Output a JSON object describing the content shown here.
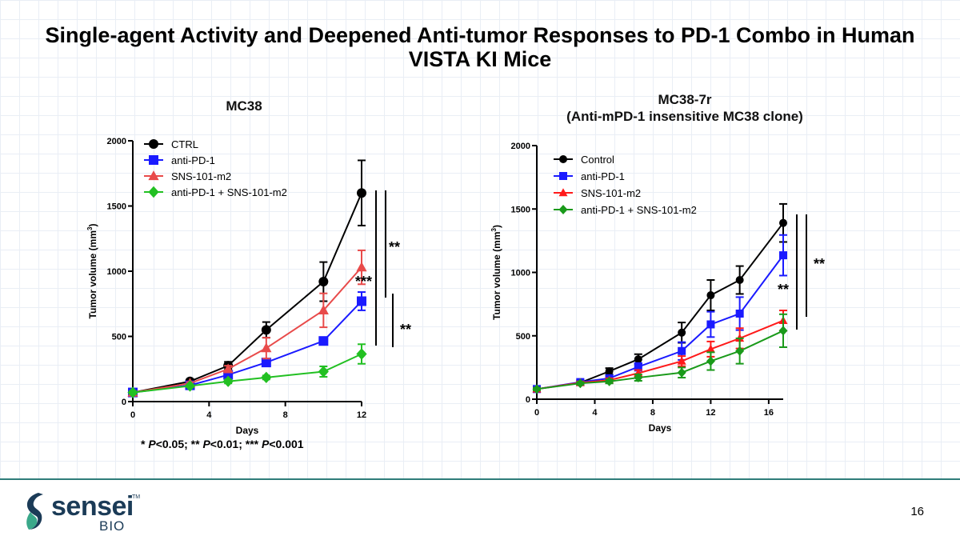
{
  "title": "Single-agent Activity and Deepened Anti-tumor Responses to PD-1 Combo in Human VISTA KI Mice",
  "footnote": "* P<0.05; ** P<0.01; *** P<0.001",
  "page_number": "16",
  "logo": {
    "word": "sensei",
    "sub": "BIO",
    "tm": "TM"
  },
  "chart_data": [
    {
      "type": "line",
      "title": "MC38",
      "xlabel": "Days",
      "ylabel": "Tumor volume (mm3)",
      "xlim": [
        0,
        12
      ],
      "ylim": [
        0,
        2000
      ],
      "xticks": [
        0,
        4,
        8,
        12
      ],
      "yticks": [
        0,
        500,
        1000,
        1500,
        2000
      ],
      "legend_position": "top-left",
      "series": [
        {
          "name": "CTRL",
          "color": "#000000",
          "marker": "circle",
          "x": [
            0,
            3,
            5,
            7,
            10,
            12
          ],
          "y": [
            70,
            155,
            275,
            550,
            920,
            1600
          ],
          "err": [
            10,
            15,
            30,
            60,
            150,
            250
          ]
        },
        {
          "name": "anti-PD-1",
          "color": "#1a1aff",
          "marker": "square",
          "x": [
            0,
            3,
            5,
            7,
            10,
            12
          ],
          "y": [
            70,
            125,
            205,
            300,
            465,
            770
          ],
          "err": [
            10,
            10,
            15,
            20,
            25,
            70
          ]
        },
        {
          "name": "SNS-101-m2",
          "color": "#e84a4a",
          "marker": "triangle",
          "x": [
            0,
            3,
            5,
            7,
            10,
            12
          ],
          "y": [
            70,
            140,
            250,
            410,
            700,
            1030
          ],
          "err": [
            10,
            10,
            25,
            80,
            130,
            130
          ]
        },
        {
          "name": "anti-PD-1 + SNS-101-m2",
          "color": "#22c022",
          "marker": "diamond",
          "x": [
            0,
            3,
            5,
            7,
            10,
            12
          ],
          "y": [
            70,
            120,
            155,
            185,
            230,
            365
          ],
          "err": [
            10,
            10,
            15,
            15,
            40,
            75
          ]
        }
      ],
      "annotations": [
        "**",
        "***",
        "**"
      ]
    },
    {
      "type": "line",
      "title": "MC38-7r",
      "subtitle": "(Anti-mPD-1 insensitive MC38 clone)",
      "xlabel": "Days",
      "ylabel": "Tumor volume (mm3)",
      "xlim": [
        0,
        17
      ],
      "ylim": [
        0,
        2000
      ],
      "xticks": [
        0,
        4,
        8,
        12,
        16
      ],
      "yticks": [
        0,
        500,
        1000,
        1500,
        2000
      ],
      "legend_position": "top-left",
      "series": [
        {
          "name": "Control",
          "color": "#000000",
          "marker": "circle",
          "x": [
            0,
            3,
            5,
            7,
            10,
            12,
            14,
            17
          ],
          "y": [
            80,
            130,
            220,
            315,
            525,
            820,
            940,
            1390
          ],
          "err": [
            10,
            15,
            25,
            40,
            80,
            120,
            110,
            150
          ]
        },
        {
          "name": "anti-PD-1",
          "color": "#1a1aff",
          "marker": "square",
          "x": [
            0,
            3,
            5,
            7,
            10,
            12,
            14,
            17
          ],
          "y": [
            80,
            135,
            165,
            255,
            380,
            590,
            675,
            1135
          ],
          "err": [
            10,
            15,
            20,
            30,
            70,
            100,
            130,
            160
          ]
        },
        {
          "name": "SNS-101-m2",
          "color": "#ff1a1a",
          "marker": "triangle",
          "x": [
            0,
            3,
            5,
            7,
            10,
            12,
            14,
            17
          ],
          "y": [
            80,
            130,
            150,
            205,
            300,
            395,
            480,
            620
          ],
          "err": [
            10,
            10,
            15,
            25,
            40,
            60,
            80,
            80
          ]
        },
        {
          "name": "anti-PD-1 + SNS-101-m2",
          "color": "#1a9a1a",
          "marker": "diamond",
          "x": [
            0,
            3,
            5,
            7,
            10,
            12,
            14,
            17
          ],
          "y": [
            80,
            125,
            140,
            170,
            210,
            300,
            380,
            540
          ],
          "err": [
            10,
            10,
            15,
            25,
            40,
            70,
            100,
            130
          ]
        }
      ],
      "annotations": [
        "**",
        "**"
      ]
    }
  ]
}
